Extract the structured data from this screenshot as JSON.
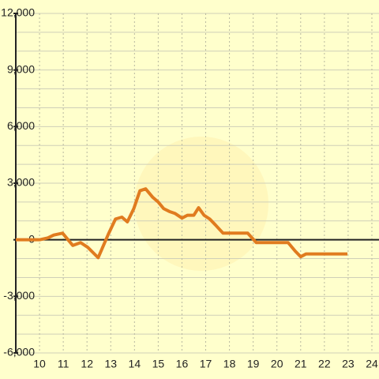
{
  "chart_data": {
    "type": "line",
    "x": [
      9.0,
      10.0,
      10.35,
      10.6,
      10.97,
      11.4,
      11.73,
      12.03,
      12.47,
      12.9,
      13.2,
      13.47,
      13.7,
      13.97,
      14.23,
      14.47,
      14.77,
      15.0,
      15.23,
      15.47,
      15.7,
      16.0,
      16.23,
      16.5,
      16.7,
      16.93,
      17.17,
      17.4,
      17.73,
      18.77,
      19.13,
      20.47,
      20.77,
      21.0,
      21.23,
      22.97
    ],
    "series": [
      {
        "color": "#e07b1f",
        "values": [
          0,
          0,
          100,
          250,
          350,
          -300,
          -150,
          -400,
          -950,
          300,
          1100,
          1200,
          950,
          1650,
          2600,
          2700,
          2250,
          2000,
          1650,
          1500,
          1400,
          1150,
          1300,
          1300,
          1700,
          1300,
          1100,
          800,
          350,
          350,
          -150,
          -150,
          -600,
          -900,
          -750,
          -750
        ]
      }
    ],
    "xlim": [
      9.0,
      24.3
    ],
    "xticks": [
      10,
      11,
      12,
      13,
      14,
      15,
      16,
      17,
      18,
      19,
      20,
      21,
      22,
      23,
      24
    ],
    "ylim": [
      -6000,
      12000
    ],
    "yticks": [
      {
        "value": -6000,
        "label": "-6,000"
      },
      {
        "value": -3000,
        "label": "-3,000"
      },
      0,
      {
        "value": 3000,
        "label": "3,000"
      },
      {
        "value": 6000,
        "label": "6,000"
      },
      {
        "value": 9000,
        "label": "9,000"
      },
      {
        "value": 12000,
        "label": "12,000"
      }
    ],
    "ygrid": [
      -6000,
      -5000,
      -4000,
      -3000,
      -2000,
      -1000,
      0,
      1000,
      2000,
      3000,
      4000,
      5000,
      6000,
      7000,
      8000,
      9000,
      10000,
      11000,
      12000
    ],
    "grid": true
  }
}
